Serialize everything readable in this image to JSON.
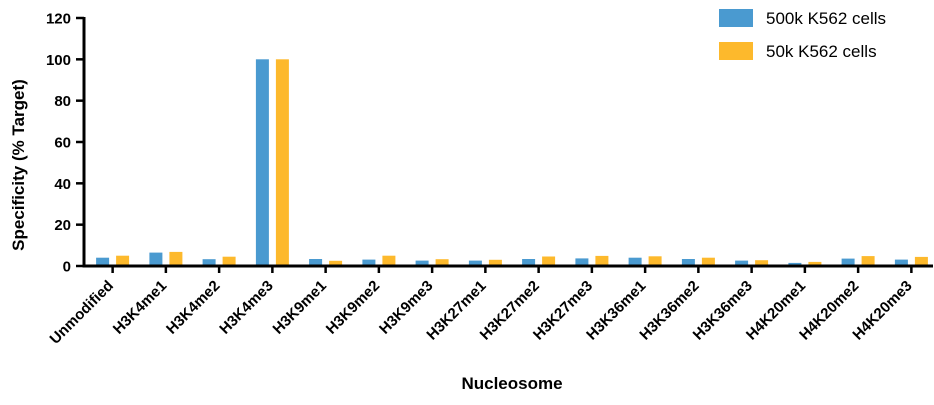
{
  "chart_data": {
    "type": "bar",
    "title": "",
    "xlabel": "Nucleosome",
    "ylabel": "Specificity (% Target)",
    "ylim": [
      0,
      120
    ],
    "yticks": [
      0,
      20,
      40,
      60,
      80,
      100,
      120
    ],
    "legend_position": "top-right",
    "grid": false,
    "categories": [
      "Unmodified",
      "H3K4me1",
      "H3K4me2",
      "H3K4me3",
      "H3K9me1",
      "H3K9me2",
      "H3K9me3",
      "H3K27me1",
      "H3K27me2",
      "H3K27me3",
      "H3K36me1",
      "H3K36me2",
      "H3K36me3",
      "H4K20me1",
      "H4K20me2",
      "H4K20me3"
    ],
    "series": [
      {
        "name": "500k K562 cells",
        "color": "#4a9ad0",
        "values": [
          4.0,
          6.5,
          3.3,
          100,
          3.4,
          3.1,
          2.6,
          2.6,
          3.4,
          3.7,
          4.0,
          3.4,
          2.6,
          1.5,
          3.6,
          3.1
        ]
      },
      {
        "name": "50k K562 cells",
        "color": "#fdb92c",
        "values": [
          5.0,
          6.8,
          4.5,
          100,
          2.5,
          5.0,
          3.3,
          3.0,
          4.6,
          4.9,
          4.7,
          4.0,
          2.8,
          2.0,
          4.8,
          4.4
        ]
      }
    ]
  }
}
